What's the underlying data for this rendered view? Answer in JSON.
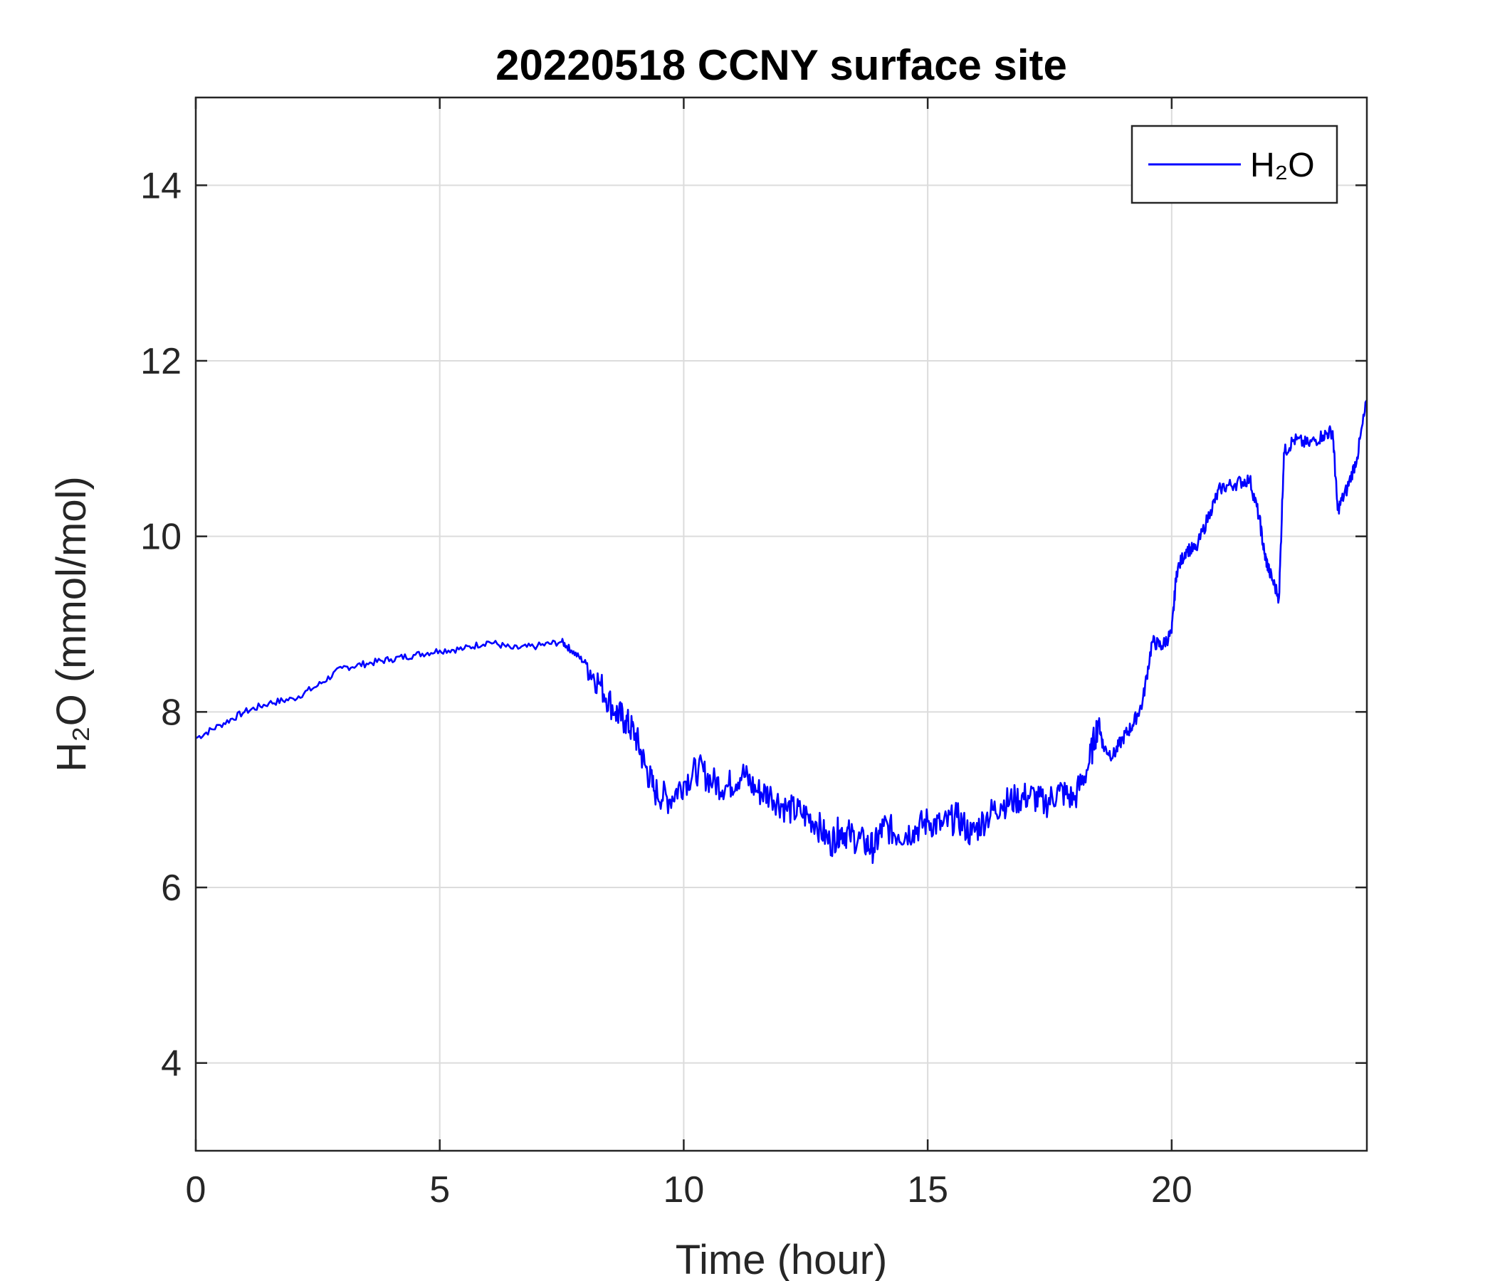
{
  "chart_data": {
    "type": "line",
    "title": "20220518 CCNY surface site",
    "xlabel": "Time (hour)",
    "ylabel": "H₂O (mmol/mol)",
    "xlim": [
      0,
      24
    ],
    "ylim": [
      3,
      15
    ],
    "xticks": [
      0,
      5,
      10,
      15,
      20
    ],
    "yticks": [
      4,
      6,
      8,
      10,
      12,
      14
    ],
    "grid": true,
    "legend_position": "top-right",
    "series": [
      {
        "name": "H₂O",
        "color": "#0000ff",
        "x": [
          0,
          0.5,
          1,
          1.5,
          2,
          2.5,
          3,
          3.5,
          4,
          4.5,
          5,
          5.5,
          6,
          6.5,
          7,
          7.5,
          7.7,
          8,
          8.3,
          8.6,
          8.8,
          9,
          9.2,
          9.4,
          9.7,
          10,
          10.3,
          10.6,
          10.9,
          11.2,
          11.5,
          11.8,
          12.1,
          12.4,
          12.7,
          13,
          13.2,
          13.4,
          13.7,
          13.9,
          14.1,
          14.4,
          14.7,
          15,
          15.3,
          15.6,
          15.9,
          16.2,
          16.5,
          16.8,
          17.1,
          17.4,
          17.7,
          18,
          18.3,
          18.5,
          18.6,
          18.8,
          19,
          19.2,
          19.4,
          19.6,
          19.8,
          20,
          20.1,
          20.3,
          20.5,
          20.8,
          21,
          21.3,
          21.6,
          21.8,
          21.9,
          22,
          22.2,
          22.3,
          22.5,
          22.8,
          23.1,
          23.3,
          23.4,
          23.6,
          23.8,
          24
        ],
        "y": [
          7.7,
          7.85,
          8.0,
          8.1,
          8.15,
          8.3,
          8.5,
          8.55,
          8.6,
          8.65,
          8.7,
          8.72,
          8.8,
          8.72,
          8.75,
          8.8,
          8.7,
          8.55,
          8.3,
          8.0,
          7.9,
          7.75,
          7.4,
          7.1,
          7.0,
          7.2,
          7.35,
          7.2,
          7.15,
          7.3,
          7.1,
          7.05,
          6.9,
          6.85,
          6.75,
          6.5,
          6.65,
          6.6,
          6.5,
          6.45,
          6.7,
          6.6,
          6.65,
          6.75,
          6.7,
          6.8,
          6.6,
          6.8,
          6.95,
          7.0,
          7.05,
          6.95,
          7.1,
          7.0,
          7.4,
          7.9,
          7.6,
          7.5,
          7.7,
          7.85,
          8.1,
          8.8,
          8.75,
          8.9,
          9.6,
          9.85,
          9.85,
          10.3,
          10.55,
          10.6,
          10.65,
          10.2,
          9.8,
          9.6,
          9.3,
          10.95,
          11.1,
          11.05,
          11.15,
          11.2,
          10.3,
          10.55,
          10.9,
          11.55
        ]
      }
    ]
  }
}
